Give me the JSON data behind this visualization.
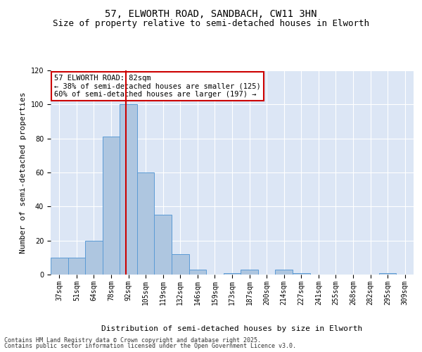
{
  "title": "57, ELWORTH ROAD, SANDBACH, CW11 3HN",
  "subtitle": "Size of property relative to semi-detached houses in Elworth",
  "xlabel": "Distribution of semi-detached houses by size in Elworth",
  "ylabel": "Number of semi-detached properties",
  "bins": [
    "37sqm",
    "51sqm",
    "64sqm",
    "78sqm",
    "92sqm",
    "105sqm",
    "119sqm",
    "132sqm",
    "146sqm",
    "159sqm",
    "173sqm",
    "187sqm",
    "200sqm",
    "214sqm",
    "227sqm",
    "241sqm",
    "255sqm",
    "268sqm",
    "282sqm",
    "295sqm",
    "309sqm"
  ],
  "values": [
    10,
    10,
    20,
    81,
    100,
    60,
    35,
    12,
    3,
    0,
    1,
    3,
    0,
    3,
    1,
    0,
    0,
    0,
    0,
    1,
    0
  ],
  "bar_color": "#aec6e0",
  "bar_edge_color": "#5b9bd5",
  "red_line_bin_index": 3.85,
  "annotation_title": "57 ELWORTH ROAD: 82sqm",
  "annotation_line1": "← 38% of semi-detached houses are smaller (125)",
  "annotation_line2": "60% of semi-detached houses are larger (197) →",
  "annotation_box_color": "#ffffff",
  "annotation_box_edge": "#cc0000",
  "red_line_color": "#cc0000",
  "ylim": [
    0,
    120
  ],
  "yticks": [
    0,
    20,
    40,
    60,
    80,
    100,
    120
  ],
  "plot_bg_color": "#dce6f5",
  "footnote1": "Contains HM Land Registry data © Crown copyright and database right 2025.",
  "footnote2": "Contains public sector information licensed under the Open Government Licence v3.0.",
  "title_fontsize": 10,
  "subtitle_fontsize": 9,
  "xlabel_fontsize": 8,
  "ylabel_fontsize": 8,
  "tick_fontsize": 7,
  "annotation_fontsize": 7.5,
  "footnote_fontsize": 6
}
